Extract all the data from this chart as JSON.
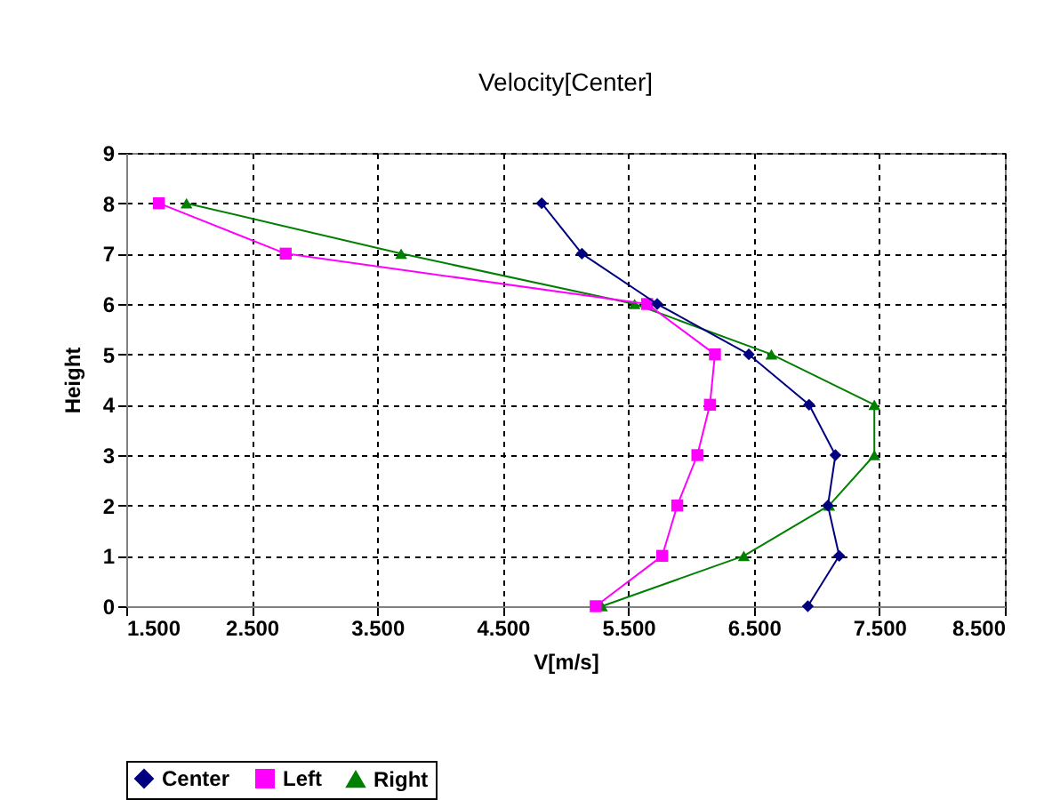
{
  "chart_data": {
    "type": "line",
    "title": "Velocity[Center]",
    "xlabel": "V[m/s]",
    "ylabel": "Height",
    "xlim": [
      1.5,
      8.5
    ],
    "xticks": [
      {
        "value": 1.5,
        "label": "1.500"
      },
      {
        "value": 2.5,
        "label": "2.500"
      },
      {
        "value": 3.5,
        "label": "3.500"
      },
      {
        "value": 4.5,
        "label": "4.500"
      },
      {
        "value": 5.5,
        "label": "5.500"
      },
      {
        "value": 6.5,
        "label": "6.500"
      },
      {
        "value": 7.5,
        "label": "7.500"
      },
      {
        "value": 8.5,
        "label": "8.500"
      }
    ],
    "ylim": [
      0,
      9
    ],
    "yticks": [
      0,
      1,
      2,
      3,
      4,
      5,
      6,
      7,
      8,
      9
    ],
    "grid": true,
    "legend": "bottom",
    "line_style": "solid",
    "series": [
      {
        "name": "Center",
        "color": "#000080",
        "marker": "diamond",
        "x": [
          6.93,
          7.18,
          7.09,
          7.15,
          6.94,
          6.46,
          5.73,
          5.13,
          4.81
        ],
        "values": [
          0,
          1,
          2,
          3,
          4,
          5,
          6,
          7,
          8
        ]
      },
      {
        "name": "Left",
        "color": "#ff00ff",
        "marker": "square",
        "x": [
          5.24,
          5.77,
          5.89,
          6.05,
          6.15,
          6.19,
          5.65,
          2.77,
          1.76
        ],
        "values": [
          0,
          1,
          2,
          3,
          4,
          5,
          6,
          7,
          8
        ]
      },
      {
        "name": "Right",
        "color": "#008000",
        "marker": "triangle",
        "x": [
          5.29,
          6.42,
          7.1,
          7.46,
          7.46,
          6.64,
          5.55,
          3.69,
          1.98
        ],
        "values": [
          0,
          1,
          2,
          3,
          4,
          5,
          6,
          7,
          8
        ]
      }
    ]
  }
}
